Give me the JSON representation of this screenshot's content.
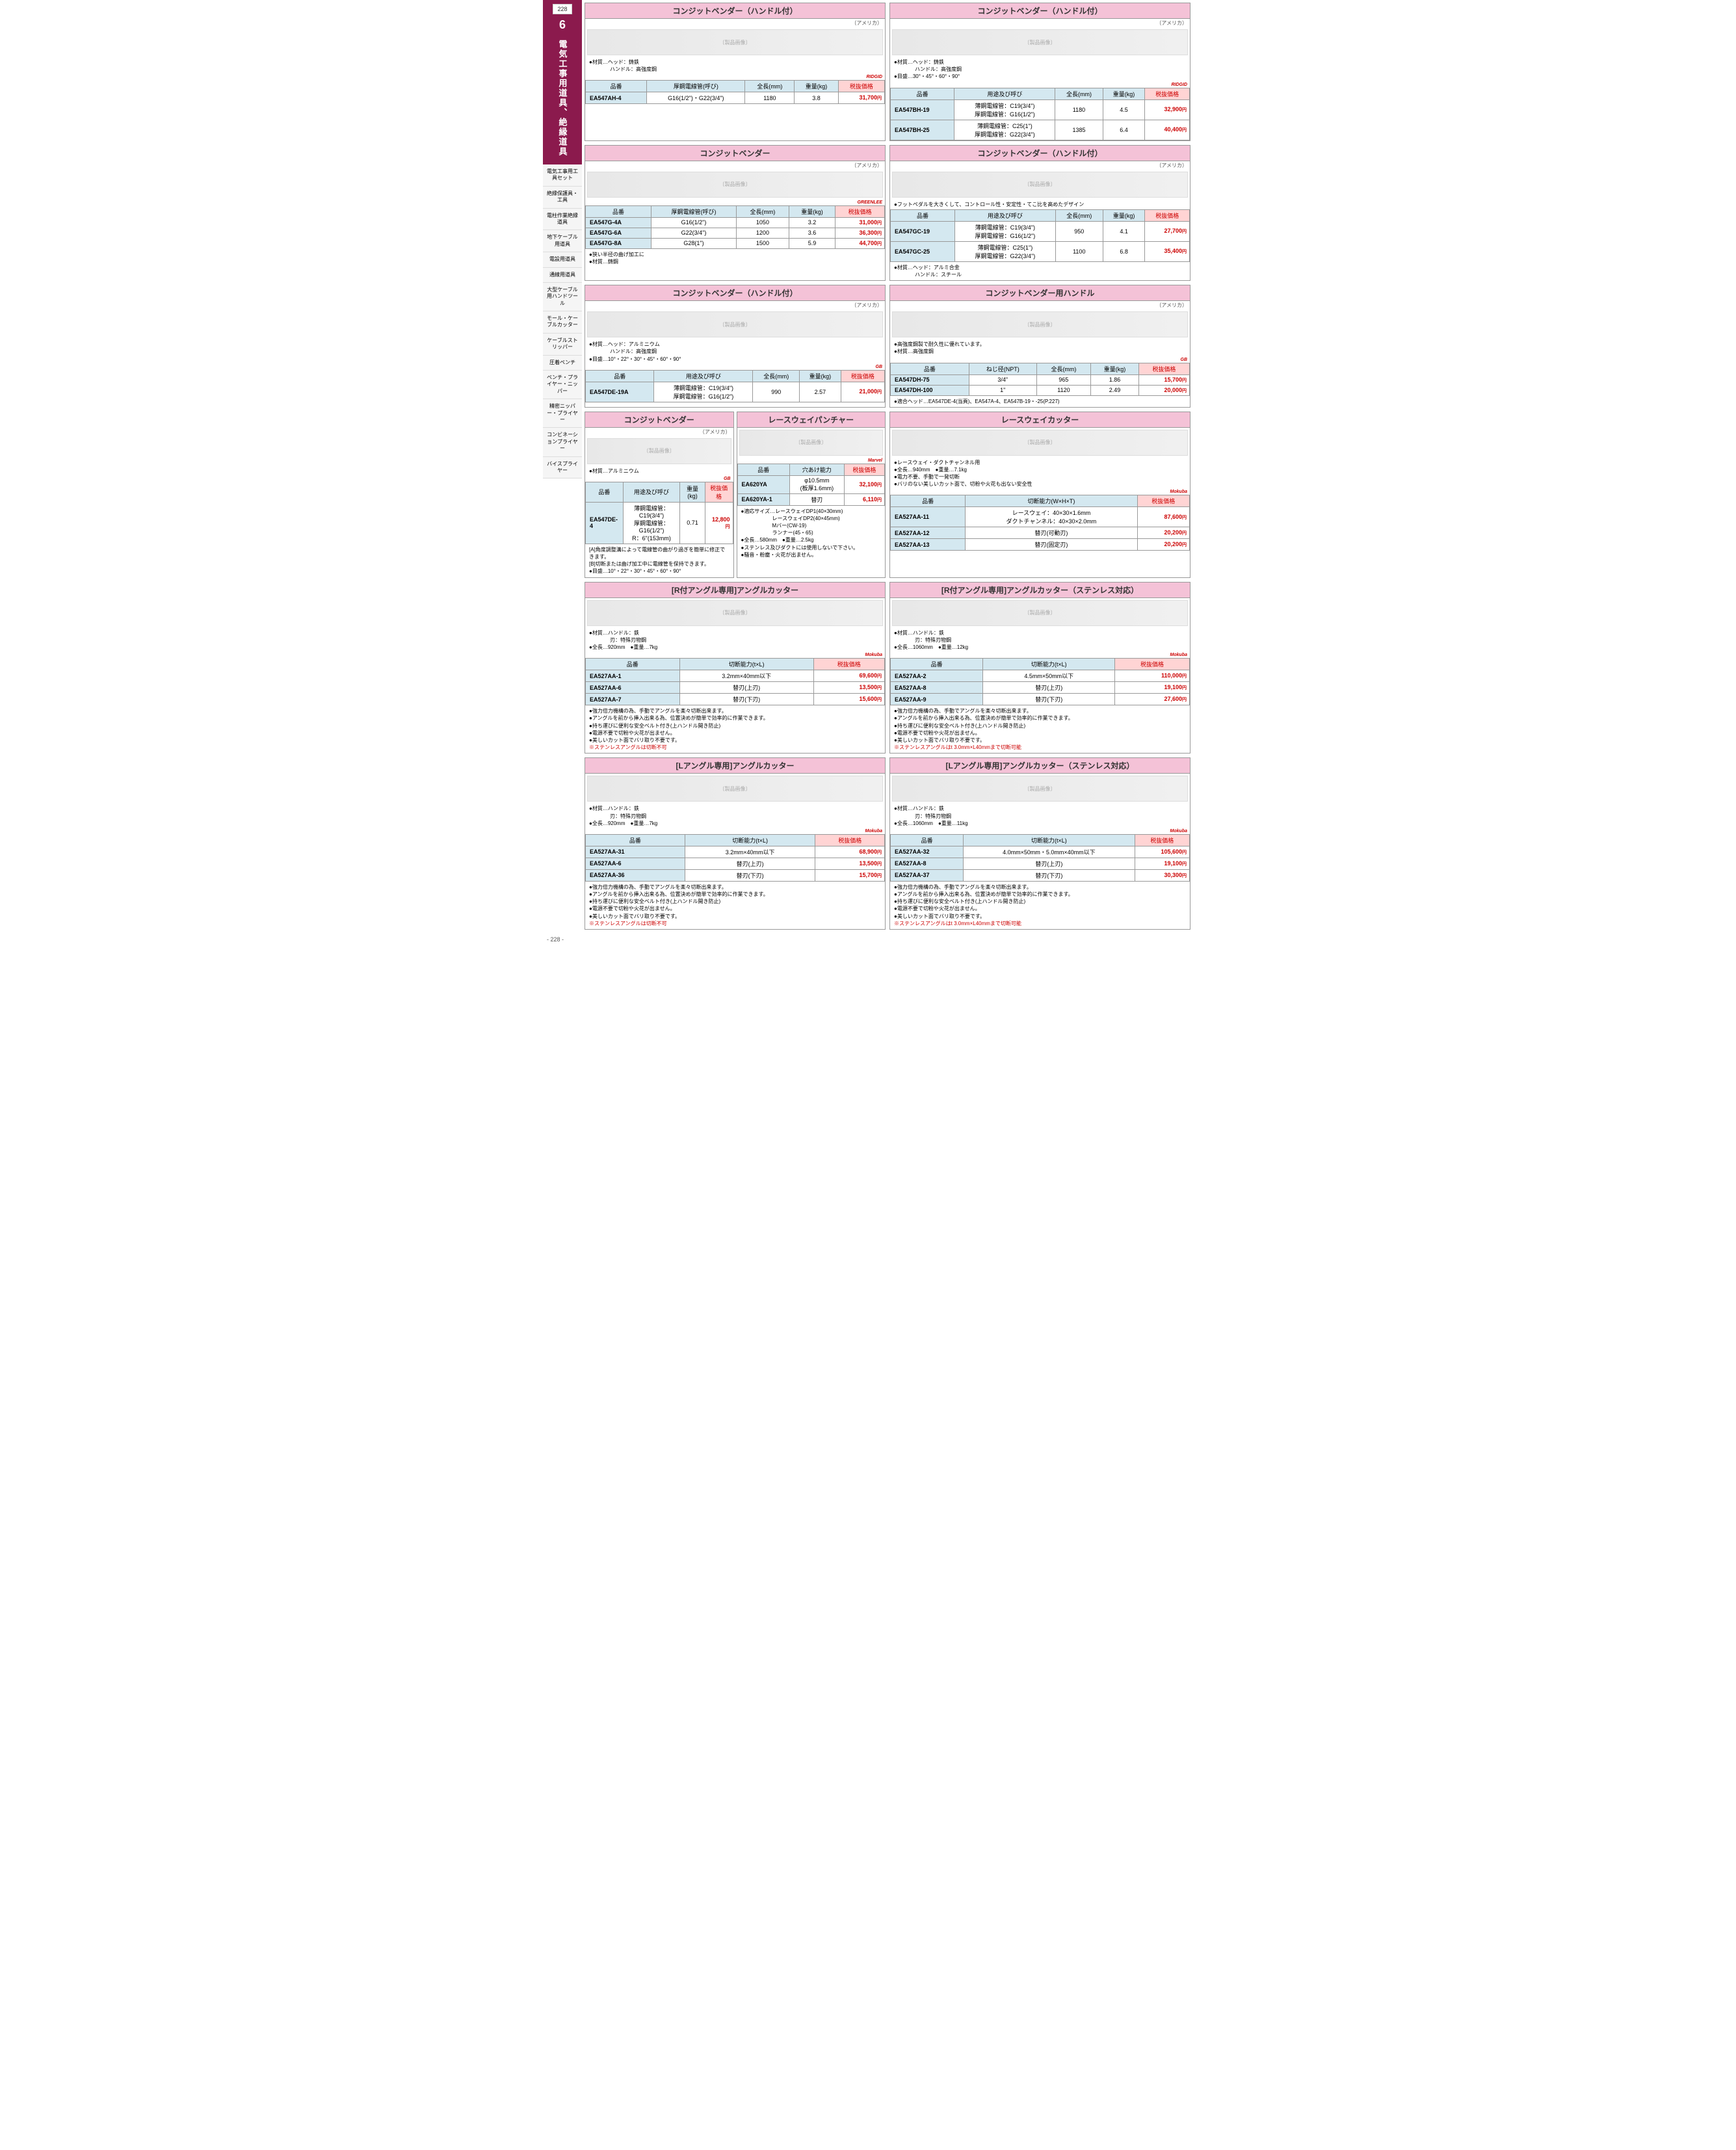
{
  "page": {
    "number": "228",
    "catNum": "6",
    "catTitle": "電気工事用道具、絶縁道具",
    "footer": "- 228 -"
  },
  "sidebar": [
    "電気工事用工具セット",
    "絶縁保護具・工具",
    "電柱作業絶縁道具",
    "地下ケーブル用道具",
    "電設用道具",
    "通線用道具",
    "大型ケーブル用ハンドツール",
    "モール・ケーブルカッター",
    "ケーブルストリッパー",
    "圧着ペンチ",
    "ペンチ・プライヤー・ニッパー",
    "精密ニッパー・プライヤー",
    "コンビネーションプライヤー",
    "バイスプライヤー"
  ],
  "colors": {
    "headerBg": "#f4c2d7",
    "thBg": "#d4e8f0",
    "priceBg": "#ffd4d4",
    "priceColor": "#c00",
    "sidebarBg": "#8b1a4d"
  },
  "b1": {
    "title": "コンジットベンダー（ハンドル付）",
    "origin": "（アメリカ）",
    "brand": "RIDGID",
    "specs": [
      "●材質…ヘッド：鋳鉄",
      "　　　　ハンドル：高強度鋼"
    ],
    "headers": [
      "品番",
      "厚鋼電線管(呼び)",
      "全長(mm)",
      "重量(kg)",
      "税抜価格"
    ],
    "rows": [
      [
        "EA547AH-4",
        "G16(1/2\")・G22(3/4\")",
        "1180",
        "3.8",
        "31,700円"
      ]
    ]
  },
  "b2": {
    "title": "コンジットベンダー（ハンドル付）",
    "origin": "（アメリカ）",
    "brand": "RIDGID",
    "specs": [
      "●材質…ヘッド：鋳鉄",
      "　　　　ハンドル：高強度鋼",
      "●目盛…30°・45°・60°・90°"
    ],
    "headers": [
      "品番",
      "用途及び呼び",
      "全長(mm)",
      "重量(kg)",
      "税抜価格"
    ],
    "rows": [
      [
        "EA547BH-19",
        "薄鋼電線管：C19(3/4\")\n厚鋼電線管：G16(1/2\")",
        "1180",
        "4.5",
        "32,900円"
      ],
      [
        "EA547BH-25",
        "薄鋼電線管：C25(1\")\n厚鋼電線管：G22(3/4\")",
        "1385",
        "6.4",
        "40,400円"
      ]
    ]
  },
  "b3": {
    "title": "コンジットベンダー",
    "origin": "（アメリカ）",
    "brand": "GREENLEE",
    "headers": [
      "品番",
      "厚鋼電線管(呼び)",
      "全長(mm)",
      "重量(kg)",
      "税抜価格"
    ],
    "rows": [
      [
        "EA547G-4A",
        "G16(1/2\")",
        "1050",
        "3.2",
        "31,000円"
      ],
      [
        "EA547G-6A",
        "G22(3/4\")",
        "1200",
        "3.6",
        "36,300円"
      ],
      [
        "EA547G-8A",
        "G28(1\")",
        "1500",
        "5.9",
        "44,700円"
      ]
    ],
    "notes": [
      "●狭い半径の曲げ加工に",
      "●材質…鋳鋼"
    ]
  },
  "b4": {
    "title": "コンジットベンダー（ハンドル付）",
    "origin": "（アメリカ）",
    "brand": "",
    "specs": [
      "●フットペダルを大きくして、コントロール性・安定性・てこ比を高めたデザイン"
    ],
    "headers": [
      "品番",
      "用途及び呼び",
      "全長(mm)",
      "重量(kg)",
      "税抜価格"
    ],
    "rows": [
      [
        "EA547GC-19",
        "薄鋼電線管：C19(3/4\")\n厚鋼電線管：G16(1/2\")",
        "950",
        "4.1",
        "27,700円"
      ],
      [
        "EA547GC-25",
        "薄鋼電線管：C25(1\")\n厚鋼電線管：G22(3/4\")",
        "1100",
        "6.8",
        "35,400円"
      ]
    ],
    "notes": [
      "●材質…ヘッド：アルミ合金",
      "　　　　ハンドル：スチール"
    ]
  },
  "b5": {
    "title": "コンジットベンダー（ハンドル付）",
    "origin": "（アメリカ）",
    "brand": "GB",
    "specs": [
      "●材質…ヘッド：アルミニウム",
      "　　　　ハンドル：高強度鋼",
      "●目盛…10°・22°・30°・45°・60°・90°"
    ],
    "headers": [
      "品番",
      "用途及び呼び",
      "全長(mm)",
      "重量(kg)",
      "税抜価格"
    ],
    "rows": [
      [
        "EA547DE-19A",
        "薄鋼電線管：C19(3/4\")\n厚鋼電線管：G16(1/2\")",
        "990",
        "2.57",
        "21,000円"
      ]
    ]
  },
  "b6": {
    "title": "コンジットベンダー用ハンドル",
    "origin": "（アメリカ）",
    "brand": "GB",
    "specs": [
      "●高強度鋼製で耐久性に優れています。",
      "●材質…高強度鋼"
    ],
    "headers": [
      "品番",
      "ねじ径(NPT)",
      "全長(mm)",
      "重量(kg)",
      "税抜価格"
    ],
    "rows": [
      [
        "EA547DH-75",
        "3/4\"",
        "965",
        "1.86",
        "15,700円"
      ],
      [
        "EA547DH-100",
        "1\"",
        "1120",
        "2.49",
        "20,000円"
      ]
    ],
    "notes": [
      "●適合ヘッド…EA547DE-4(当頁)、EA547A-4、EA547B-19・-25(P.227)"
    ]
  },
  "b7": {
    "title": "コンジットベンダー",
    "origin": "（アメリカ）",
    "brand": "GB",
    "specs": [
      "●材質…アルミニウム"
    ],
    "headers": [
      "品番",
      "用途及び呼び",
      "重量(kg)",
      "税抜価格"
    ],
    "rows": [
      [
        "EA547DE-4",
        "薄鋼電線管：C19(3/4\")\n厚鋼電線管：G16(1/2\")\nR：6\"(153mm)",
        "0.71",
        "12,800円"
      ]
    ],
    "notes": [
      "[A]角度調整溝によって電線管の曲がり過ぎを簡単に修正できます。",
      "[B]切断または曲げ加工中に電線管を保持できます。",
      "●目盛…10°・22°・30°・45°・60°・90°"
    ]
  },
  "b8": {
    "title": "レースウェイパンチャー",
    "brand": "Marvel",
    "headers": [
      "品番",
      "穴あけ能力",
      "税抜価格"
    ],
    "rows": [
      [
        "EA620YA",
        "φ10.5mm\n(板厚1.6mm)",
        "32,100円"
      ],
      [
        "EA620YA-1",
        "替刃",
        "6,110円"
      ]
    ],
    "notes": [
      "●適応サイズ…レースウェイDP1(40×30mm)",
      "　　　　　　レースウェイDP2(40×45mm)",
      "　　　　　　Mバー(CW-19)",
      "　　　　　　ランナー(45・65)",
      "●全長…580mm　●重量…2.5kg",
      "●ステンレス及びダクトには使用しないで下さい。",
      "●騒音・粉塵・火花が出ません。"
    ]
  },
  "b9": {
    "title": "レースウェイカッター",
    "brand": "Mokuba",
    "specs": [
      "●レースウェイ・ダクトチャンネル用",
      "●全長…940mm　●重量…7.1kg",
      "●電力不要、手動で一発切断",
      "●バリのない美しいカット面で、切粉や火花も出ない安全性"
    ],
    "headers": [
      "品番",
      "切断能力(W×H×T)",
      "税抜価格"
    ],
    "rows": [
      [
        "EA527AA-11",
        "レースウェイ：40×30×1.6mm\nダクトチャンネル：40×30×2.0mm",
        "87,600円"
      ],
      [
        "EA527AA-12",
        "替刃(可動刃)",
        "20,200円"
      ],
      [
        "EA527AA-13",
        "替刃(固定刃)",
        "20,200円"
      ]
    ]
  },
  "b10": {
    "title": "[R付アングル専用]アングルカッター",
    "brand": "Mokuba",
    "specs": [
      "●材質…ハンドル：鉄",
      "　　　　刃：特殊刃物鋼",
      "●全長…920mm　●重量…7kg"
    ],
    "headers": [
      "品番",
      "切断能力(t×L)",
      "税抜価格"
    ],
    "rows": [
      [
        "EA527AA-1",
        "3.2mm×40mm以下",
        "69,600円"
      ],
      [
        "EA527AA-6",
        "替刃(上刃)",
        "13,500円"
      ],
      [
        "EA527AA-7",
        "替刃(下刃)",
        "15,600円"
      ]
    ],
    "notes": [
      "●強力倍力機構の為、手動でアングルを楽々切断出来ます。",
      "●アングルを前から挿入出来る為、位置決めが簡単で効率的に作業できます。",
      "●持ち運びに便利な安全ベルト付き(上ハンドル開き防止)",
      "●電源不要で切粉や火花が出ません。",
      "●美しいカット面でバリ取り不要です。",
      "※ステンレスアングルは切断不可"
    ]
  },
  "b11": {
    "title": "[R付アングル専用]アングルカッター（ステンレス対応）",
    "brand": "Mokuba",
    "specs": [
      "●材質…ハンドル：鉄",
      "　　　　刃：特殊刃物鋼",
      "●全長…1060mm　●重量…12kg"
    ],
    "headers": [
      "品番",
      "切断能力(t×L)",
      "税抜価格"
    ],
    "rows": [
      [
        "EA527AA-2",
        "4.5mm×50mm以下",
        "110,000円"
      ],
      [
        "EA527AA-8",
        "替刃(上刃)",
        "19,100円"
      ],
      [
        "EA527AA-9",
        "替刃(下刃)",
        "27,600円"
      ]
    ],
    "notes": [
      "●強力倍力機構の為、手動でアングルを楽々切断出来ます。",
      "●アングルを前から挿入出来る為、位置決めが簡単で効率的に作業できます。",
      "●持ち運びに便利な安全ベルト付き(上ハンドル開き防止)",
      "●電源不要で切粉や火花が出ません。",
      "●美しいカット面でバリ取り不要です。",
      "※ステンレスアングルはt 3.0mm×L40mmまで切断可能"
    ]
  },
  "b12": {
    "title": "[Lアングル専用]アングルカッター",
    "brand": "Mokuba",
    "specs": [
      "●材質…ハンドル：鉄",
      "　　　　刃：特殊刃物鋼",
      "●全長…920mm　●重量…7kg"
    ],
    "headers": [
      "品番",
      "切断能力(t×L)",
      "税抜価格"
    ],
    "rows": [
      [
        "EA527AA-31",
        "3.2mm×40mm以下",
        "68,900円"
      ],
      [
        "EA527AA-6",
        "替刃(上刃)",
        "13,500円"
      ],
      [
        "EA527AA-36",
        "替刃(下刃)",
        "15,700円"
      ]
    ],
    "notes": [
      "●強力倍力機構の為、手動でアングルを楽々切断出来ます。",
      "●アングルを前から挿入出来る為、位置決めが簡単で効率的に作業できます。",
      "●持ち運びに便利な安全ベルト付き(上ハンドル開き防止)",
      "●電源不要で切粉や火花が出ません。",
      "●美しいカット面でバリ取り不要です。",
      "※ステンレスアングルは切断不可"
    ]
  },
  "b13": {
    "title": "[Lアングル専用]アングルカッター（ステンレス対応）",
    "brand": "Mokuba",
    "specs": [
      "●材質…ハンドル：鉄",
      "　　　　刃：特殊刃物鋼",
      "●全長…1060mm　●重量…11kg"
    ],
    "headers": [
      "品番",
      "切断能力(t×L)",
      "税抜価格"
    ],
    "rows": [
      [
        "EA527AA-32",
        "4.0mm×50mm・5.0mm×40mm以下",
        "105,600円"
      ],
      [
        "EA527AA-8",
        "替刃(上刃)",
        "19,100円"
      ],
      [
        "EA527AA-37",
        "替刃(下刃)",
        "30,300円"
      ]
    ],
    "notes": [
      "●強力倍力機構の為、手動でアングルを楽々切断出来ます。",
      "●アングルを前から挿入出来る為、位置決めが簡単で効率的に作業できます。",
      "●持ち運びに便利な安全ベルト付き(上ハンドル開き防止)",
      "●電源不要で切粉や火花が出ません。",
      "●美しいカット面でバリ取り不要です。",
      "※ステンレスアングルはt 3.0mm×L40mmまで切断可能"
    ]
  }
}
